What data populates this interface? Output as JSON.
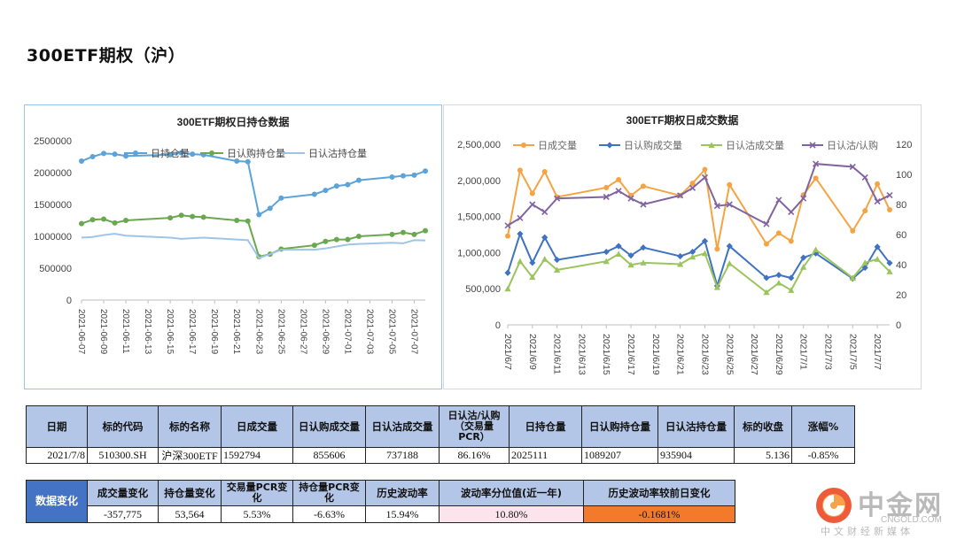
{
  "page_title": "300ETF期权（沪）",
  "chart_data": [
    {
      "type": "line",
      "title": "300ETF期权日持仓数据",
      "x": [
        "2021-06-07",
        "2021-06-08",
        "2021-06-09",
        "2021-06-10",
        "2021-06-11",
        "2021-06-15",
        "2021-06-16",
        "2021-06-17",
        "2021-06-18",
        "2021-06-21",
        "2021-06-22",
        "2021-06-23",
        "2021-06-24",
        "2021-06-25",
        "2021-06-28",
        "2021-06-29",
        "2021-06-30",
        "2021-07-01",
        "2021-07-02",
        "2021-07-05",
        "2021-07-06",
        "2021-07-07",
        "2021-07-08"
      ],
      "xticks": [
        "2021-06-07",
        "2021-06-09",
        "2021-06-11",
        "2021-06-13",
        "2021-06-15",
        "2021-06-17",
        "2021-06-19",
        "2021-06-21",
        "2021-06-23",
        "2021-06-25",
        "2021-06-27",
        "2021-06-29",
        "2021-07-01",
        "2021-07-03",
        "2021-07-05",
        "2021-07-07"
      ],
      "yticks": [
        "0",
        "500000",
        "1000000",
        "1500000",
        "2000000",
        "2500000"
      ],
      "ylim": [
        0,
        2500000
      ],
      "series": [
        {
          "name": "日持仓量",
          "color": "#5ba3d9",
          "values": [
            2180000,
            2250000,
            2300000,
            2290000,
            2260000,
            2280000,
            2310000,
            2290000,
            2280000,
            2180000,
            2170000,
            1340000,
            1440000,
            1600000,
            1660000,
            1720000,
            1790000,
            1810000,
            1880000,
            1930000,
            1950000,
            1960000,
            2025111
          ]
        },
        {
          "name": "日认购持仓量",
          "color": "#6aa84f",
          "values": [
            1200000,
            1260000,
            1270000,
            1210000,
            1250000,
            1290000,
            1330000,
            1310000,
            1300000,
            1250000,
            1240000,
            680000,
            720000,
            800000,
            860000,
            920000,
            950000,
            950000,
            1000000,
            1030000,
            1060000,
            1030000,
            1089207
          ]
        },
        {
          "name": "日认沽持仓量",
          "color": "#9fc4e8",
          "values": [
            980000,
            990000,
            1020000,
            1040000,
            1010000,
            980000,
            960000,
            970000,
            980000,
            950000,
            940000,
            660000,
            720000,
            790000,
            790000,
            810000,
            840000,
            870000,
            880000,
            900000,
            890000,
            940000,
            935904
          ]
        }
      ]
    },
    {
      "type": "line",
      "title": "300ETF期权日成交数据",
      "x": [
        "2021/6/7",
        "2021/6/8",
        "2021/6/9",
        "2021/6/10",
        "2021/6/11",
        "2021/6/15",
        "2021/6/16",
        "2021/6/17",
        "2021/6/18",
        "2021/6/21",
        "2021/6/22",
        "2021/6/23",
        "2021/6/24",
        "2021/6/25",
        "2021/6/28",
        "2021/6/29",
        "2021/6/30",
        "2021/7/1",
        "2021/7/2",
        "2021/7/5",
        "2021/7/6",
        "2021/7/7",
        "2021/7/8"
      ],
      "xticks": [
        "2021/6/7",
        "2021/6/9",
        "2021/6/11",
        "2021/6/13",
        "2021/6/15",
        "2021/6/17",
        "2021/6/19",
        "2021/6/21",
        "2021/6/23",
        "2021/6/25",
        "2021/6/27",
        "2021/6/29",
        "2021/7/1",
        "2021/7/3",
        "2021/7/5",
        "2021/7/7"
      ],
      "yticks_left": [
        "0",
        "500,000",
        "1,000,000",
        "1,500,000",
        "2,000,000",
        "2,500,000"
      ],
      "yticks_right": [
        "0",
        "20",
        "40",
        "60",
        "80",
        "100",
        "120"
      ],
      "ylim_left": [
        0,
        2500000
      ],
      "ylim_right": [
        0,
        120
      ],
      "series": [
        {
          "name": "日成交量",
          "axis": "left",
          "color": "#f4a442",
          "values": [
            1230000,
            2140000,
            1820000,
            2120000,
            1770000,
            1900000,
            2010000,
            1790000,
            1920000,
            1790000,
            1960000,
            2150000,
            1050000,
            1940000,
            1120000,
            1270000,
            1160000,
            1800000,
            2030000,
            1300000,
            1580000,
            1950000,
            1592794
          ]
        },
        {
          "name": "日认购成交量",
          "axis": "left",
          "color": "#3f72c0",
          "values": [
            720000,
            1260000,
            860000,
            1210000,
            900000,
            1010000,
            1090000,
            960000,
            1070000,
            950000,
            1010000,
            1160000,
            540000,
            1090000,
            650000,
            690000,
            650000,
            930000,
            990000,
            640000,
            790000,
            1080000,
            855606
          ]
        },
        {
          "name": "日认沽成交量",
          "axis": "left",
          "color": "#9bc45c",
          "values": [
            500000,
            880000,
            660000,
            910000,
            760000,
            880000,
            980000,
            830000,
            860000,
            840000,
            940000,
            990000,
            520000,
            850000,
            450000,
            580000,
            480000,
            800000,
            1040000,
            650000,
            860000,
            910000,
            737188
          ]
        },
        {
          "name": "日认沽/认购",
          "axis": "right",
          "color": "#8064a2",
          "values": [
            66,
            71,
            80,
            75,
            84,
            85,
            89,
            84,
            80,
            86,
            91,
            98,
            79,
            80,
            67,
            83,
            75,
            84,
            107,
            105,
            98,
            82,
            86.16
          ]
        }
      ]
    }
  ],
  "table1": {
    "headers": [
      "日期",
      "标的代码",
      "标的名称",
      "日成交量",
      "日认购成交量",
      "日认沽成交量",
      "日认沽/认购（交易量PCR）",
      "日持仓量",
      "日认购持仓量",
      "日认沽持仓量",
      "标的收盘",
      "涨幅%"
    ],
    "row": [
      "2021/7/8",
      "510300.SH",
      "沪深300ETF",
      "1592794",
      "855606",
      "737188",
      "86.16%",
      "2025111",
      "1089207",
      "935904",
      "5.136",
      "-0.85%"
    ]
  },
  "table2": {
    "side_label": "数据变化",
    "headers": [
      "成交量变化",
      "持仓量变化",
      "交易量PCR变化",
      "持仓量PCR变化",
      "历史波动率",
      "波动率分位值(近一年)",
      "历史波动率较前日变化"
    ],
    "row": [
      "-357,775",
      "53,564",
      "5.53%",
      "-6.63%",
      "15.94%",
      "10.80%",
      "-0.1681%"
    ],
    "colors": {
      "side": "#4472c4",
      "pink": "#fce4ec",
      "orange": "#f47a2b"
    }
  },
  "watermark": {
    "cn": "中金网",
    "en": "CNGOLD.COM",
    "sub": "中文财经新媒体",
    "color": "#b9b9b9"
  }
}
